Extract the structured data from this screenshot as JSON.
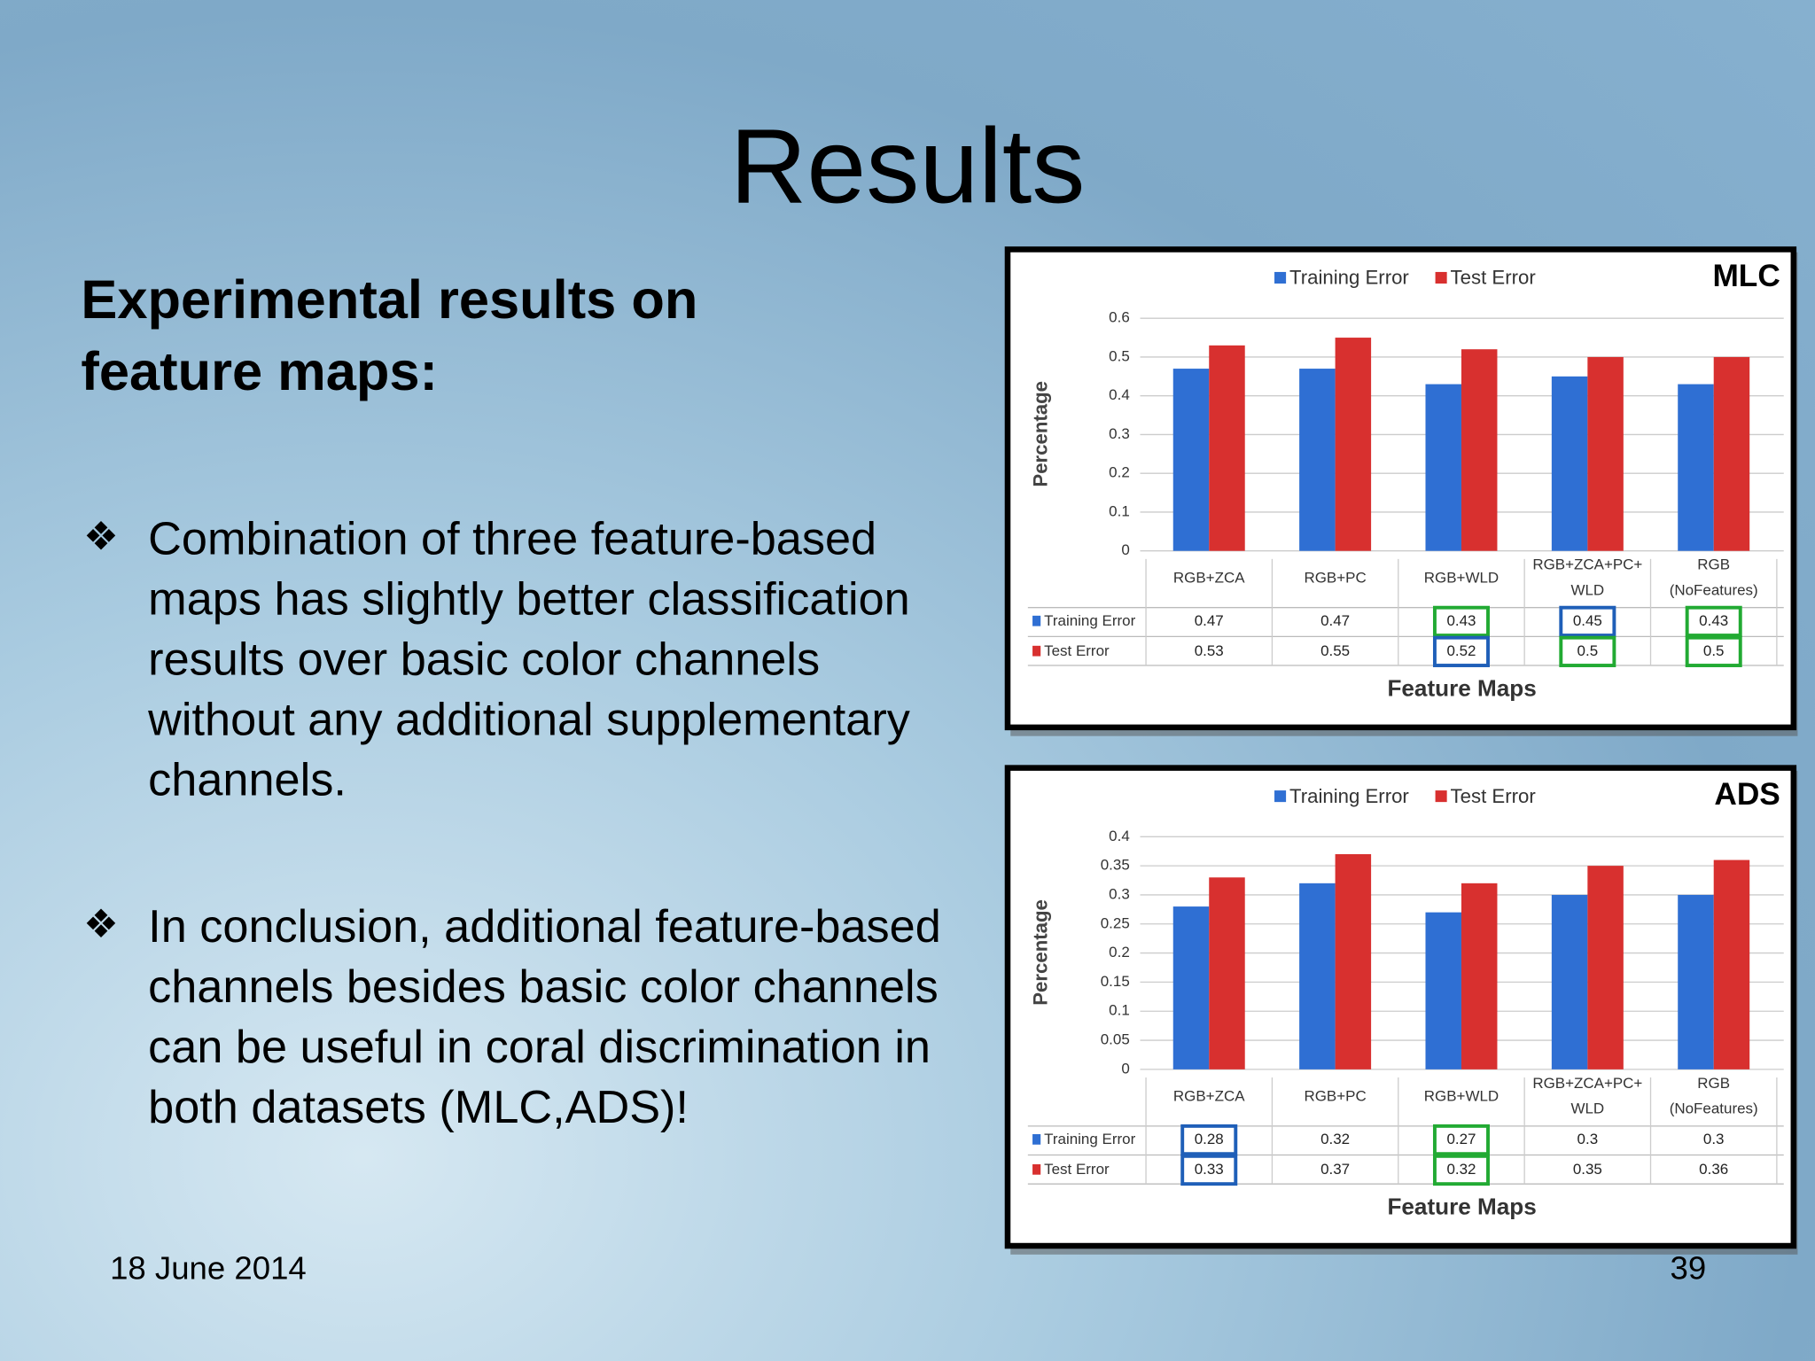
{
  "title": "Results",
  "heading": "Experimental results on feature maps:",
  "bullets": [
    "Combination of three feature-based maps has slightly better classification results over basic color channels without any additional supplementary channels.",
    "In conclusion, additional feature-based channels besides basic color channels can be useful in coral discrimination in both datasets (MLC,ADS)!"
  ],
  "footer": {
    "date": "18 June 2014",
    "page": "39"
  },
  "chart_data": [
    {
      "type": "bar",
      "label": "MLC",
      "ylabel": "Percentage",
      "xlabel": "Feature Maps",
      "categories": [
        "RGB+ZCA",
        "RGB+PC",
        "RGB+WLD",
        "RGB+ZCA+PC+ WLD",
        "RGB (NoFeatures)"
      ],
      "series": [
        {
          "name": "Training Error",
          "color": "#2f6fd3",
          "values": [
            0.47,
            0.47,
            0.43,
            0.45,
            0.43
          ]
        },
        {
          "name": "Test Error",
          "color": "#d8302f",
          "values": [
            0.53,
            0.55,
            0.52,
            0.5,
            0.5
          ]
        }
      ],
      "ylim": [
        0,
        0.6
      ],
      "yticks": [
        0,
        0.1,
        0.2,
        0.3,
        0.4,
        0.5,
        0.6
      ],
      "grid": true,
      "highlights": [
        {
          "series": 0,
          "index": 2,
          "color": "#22aa33"
        },
        {
          "series": 1,
          "index": 2,
          "color": "#1f5fb8"
        },
        {
          "series": 0,
          "index": 3,
          "color": "#1f5fb8"
        },
        {
          "series": 1,
          "index": 3,
          "color": "#22aa33"
        },
        {
          "series": 0,
          "index": 4,
          "color": "#22aa33"
        },
        {
          "series": 1,
          "index": 4,
          "color": "#22aa33"
        }
      ]
    },
    {
      "type": "bar",
      "label": "ADS",
      "ylabel": "Percentage",
      "xlabel": "Feature Maps",
      "categories": [
        "RGB+ZCA",
        "RGB+PC",
        "RGB+WLD",
        "RGB+ZCA+PC+ WLD",
        "RGB (NoFeatures)"
      ],
      "series": [
        {
          "name": "Training Error",
          "color": "#2f6fd3",
          "values": [
            0.28,
            0.32,
            0.27,
            0.3,
            0.3
          ]
        },
        {
          "name": "Test Error",
          "color": "#d8302f",
          "values": [
            0.33,
            0.37,
            0.32,
            0.35,
            0.36
          ]
        }
      ],
      "ylim": [
        0,
        0.4
      ],
      "yticks": [
        0,
        0.05,
        0.1,
        0.15,
        0.2,
        0.25,
        0.3,
        0.35,
        0.4
      ],
      "grid": true,
      "highlights": [
        {
          "series": 0,
          "index": 0,
          "color": "#1f5fb8"
        },
        {
          "series": 1,
          "index": 0,
          "color": "#1f5fb8"
        },
        {
          "series": 0,
          "index": 2,
          "color": "#22aa33"
        },
        {
          "series": 1,
          "index": 2,
          "color": "#22aa33"
        }
      ]
    }
  ]
}
